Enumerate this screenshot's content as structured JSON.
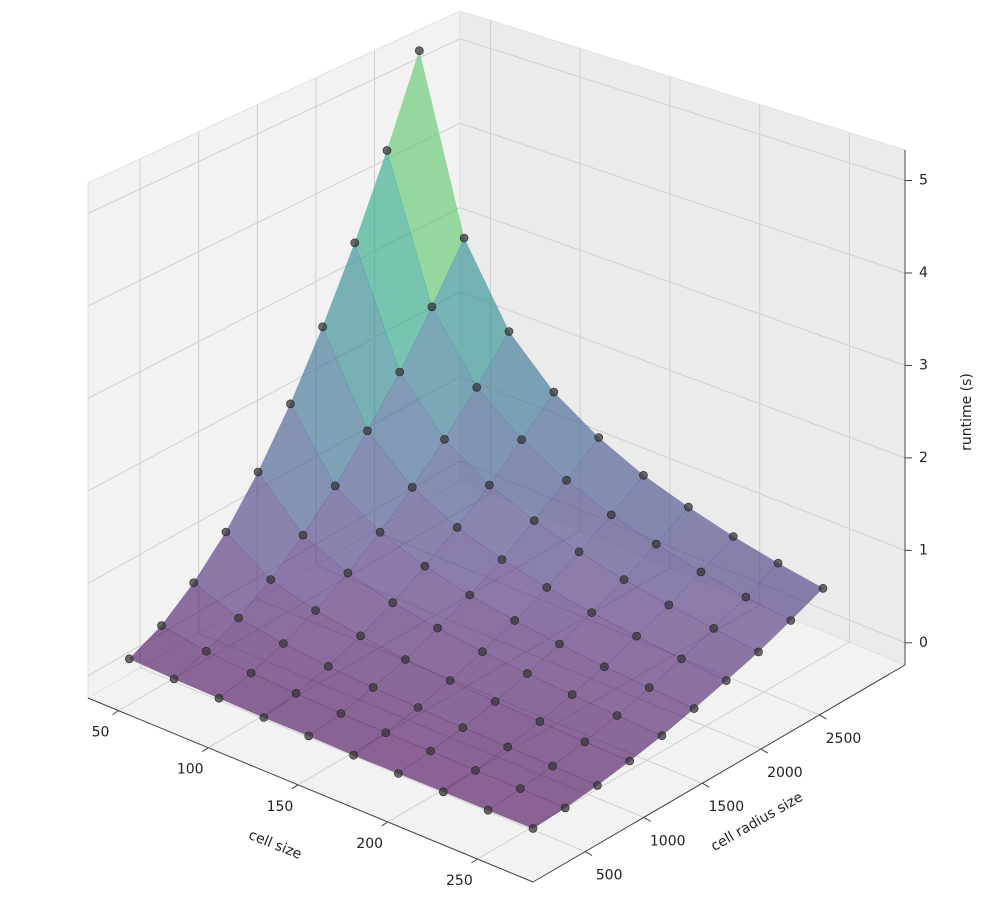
{
  "chart_data": {
    "type": "surface3d",
    "xlabel": "cell size",
    "ylabel": "cell radius size",
    "zlabel": "runtime (s)",
    "x": [
      40,
      65,
      90,
      115,
      140,
      165,
      190,
      215,
      240,
      265
    ],
    "y": [
      300,
      575,
      850,
      1125,
      1400,
      1675,
      1950,
      2225,
      2500,
      2775
    ],
    "z": [
      [
        0.06,
        0.04,
        0.03,
        0.02,
        0.02,
        0.01,
        0.01,
        0.01,
        0.01,
        0.01
      ],
      [
        0.22,
        0.14,
        0.1,
        0.08,
        0.06,
        0.05,
        0.05,
        0.04,
        0.04,
        0.03
      ],
      [
        0.49,
        0.3,
        0.22,
        0.17,
        0.14,
        0.12,
        0.1,
        0.09,
        0.08,
        0.07
      ],
      [
        0.85,
        0.52,
        0.38,
        0.3,
        0.24,
        0.21,
        0.18,
        0.16,
        0.14,
        0.13
      ],
      [
        1.32,
        0.81,
        0.59,
        0.46,
        0.38,
        0.32,
        0.28,
        0.25,
        0.22,
        0.2
      ],
      [
        1.89,
        1.16,
        0.84,
        0.66,
        0.54,
        0.46,
        0.4,
        0.35,
        0.32,
        0.29
      ],
      [
        2.57,
        1.58,
        1.14,
        0.89,
        0.73,
        0.62,
        0.54,
        0.48,
        0.43,
        0.39
      ],
      [
        3.34,
        2.05,
        1.48,
        1.16,
        0.96,
        0.81,
        0.7,
        0.62,
        0.56,
        0.5
      ],
      [
        4.22,
        2.6,
        1.87,
        1.47,
        1.21,
        1.02,
        0.89,
        0.78,
        0.7,
        0.64
      ],
      [
        5.2,
        3.2,
        2.31,
        1.81,
        1.49,
        1.26,
        1.1,
        0.97,
        0.87,
        0.79
      ]
    ],
    "xlim": [
      33,
      281
    ],
    "ylim": [
      55,
      3230
    ],
    "zlim": [
      -0.24,
      5.33
    ],
    "xticks": [
      50,
      100,
      150,
      200,
      250
    ],
    "yticks": [
      500,
      1000,
      1500,
      2000,
      2500
    ],
    "zticks": [
      0,
      1,
      2,
      3,
      4,
      5
    ],
    "colormap": "viridis",
    "point_color": "#3a3a3a",
    "grid": true
  }
}
